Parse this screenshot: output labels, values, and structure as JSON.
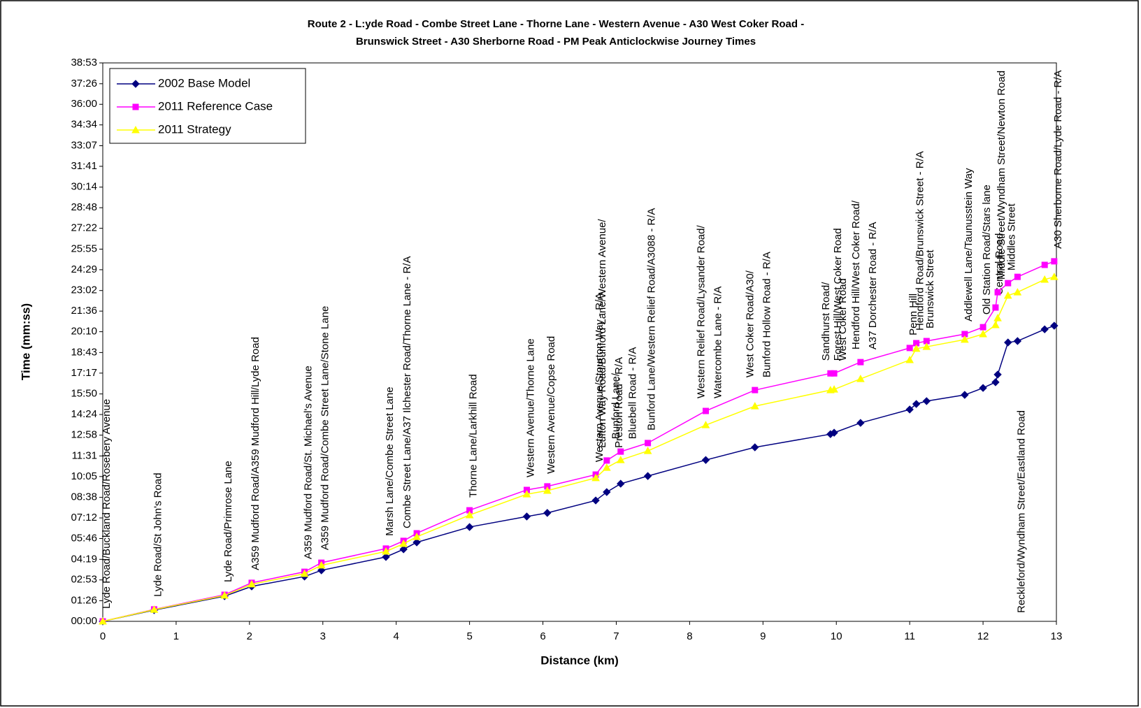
{
  "chart_data": {
    "type": "line",
    "title": [
      "Route 2 - L:yde Road - Combe Street Lane - Thorne Lane - Western Avenue - A30 West Coker Road -",
      "Brunswick Street - A30 Sherborne Road - PM Peak Anticlockwise Journey Times"
    ],
    "x_label": "Distance (km)",
    "y_label": "Time (mm:ss)",
    "x": [
      0,
      0.7,
      1.66,
      2.03,
      2.75,
      2.98,
      3.86,
      4.1,
      4.28,
      5.0,
      5.78,
      6.06,
      6.72,
      6.87,
      7.06,
      7.43,
      8.22,
      8.89,
      9.92,
      9.97,
      10.33,
      11.0,
      11.09,
      11.23,
      11.75,
      12.0,
      12.17,
      12.2,
      12.34,
      12.47,
      12.84,
      12.97
    ],
    "series": [
      {
        "name": "2002 Base Model",
        "color": "#000080",
        "marker": "diamond",
        "values": [
          0,
          47,
          105,
          146,
          187,
          213,
          269,
          301,
          330,
          394,
          438,
          453,
          505,
          540,
          575,
          607,
          674,
          727,
          782,
          788,
          829,
          885,
          908,
          920,
          946,
          975,
          999,
          1031,
          1165,
          1171,
          1220,
          1235
        ]
      },
      {
        "name": "2011 Reference Case",
        "color": "#ff00ff",
        "marker": "square",
        "values": [
          0,
          50,
          111,
          161,
          207,
          245,
          304,
          336,
          368,
          464,
          549,
          564,
          613,
          672,
          709,
          745,
          879,
          966,
          1036,
          1036,
          1083,
          1142,
          1162,
          1171,
          1200,
          1229,
          1311,
          1375,
          1413,
          1439,
          1489,
          1504
        ]
      },
      {
        "name": "2011 Strategy",
        "color": "#ffff00",
        "marker": "triangle",
        "values": [
          0,
          49,
          108,
          155,
          199,
          234,
          292,
          324,
          353,
          444,
          531,
          546,
          599,
          642,
          674,
          712,
          820,
          899,
          966,
          969,
          1013,
          1092,
          1139,
          1147,
          1177,
          1200,
          1238,
          1267,
          1361,
          1375,
          1428,
          1439
        ]
      }
    ],
    "point_labels": [
      [
        "Lyde Road/Buckland Road/Rosebery Avenue"
      ],
      [
        "Lyde Road/St John's Road"
      ],
      [
        "Lyde Road/Primrose Lane"
      ],
      [
        "A359 Mudford Road/A359 Mudford Hill/Lyde Road"
      ],
      [
        "A359 Mudford Road/St. Michael's Avenue"
      ],
      [
        "A359 Mudford Road/Combe Street Lane/Stone Lane"
      ],
      [
        "Marsh Lane/Combe Street Lane"
      ],
      [
        "Combe Street Lane/A37 Ilchester Road/Thorne Lane - R/A"
      ],
      null,
      [
        "Thorne Lane/Larkhill Road"
      ],
      [
        "Western Avenue/Thorne Lane"
      ],
      [
        "Western Avenue/Copse Road"
      ],
      [
        "Western Avenue/Stourton Way - R/A"
      ],
      [
        "Lufton Way Road/Bunford Lane/Western Avenue/",
        "Preston Road - R/A"
      ],
      [
        "Bunford Lane/",
        "Bluebell Road - R/A"
      ],
      [
        "Bunford Lane/Western Relief Road/A3088 - R/A"
      ],
      [
        "Western Relief Road/Lysander Road/",
        "Watercombe Lane - R/A"
      ],
      [
        "West Coker Road/A30/",
        "Bunford Hollow Road - R/A"
      ],
      [
        "Sandhurst Road/",
        "West Coker Road"
      ],
      [
        "Forest Hill/West Coker Road"
      ],
      [
        "Hendford Hill/West Coker Road/",
        "A37 Dorchester Road - R/A"
      ],
      [
        "Penn Hill"
      ],
      [
        "Hendford Road/Brunswick Street - R/A"
      ],
      [
        "Brunswick Street"
      ],
      [
        "Addlewell Lane/Taunusstein Way"
      ],
      [
        "Old Station Road/Stars lane"
      ],
      [
        "Central Road"
      ],
      [
        "Middle Street/Wyndham Street/Newton Road"
      ],
      [
        "Middles Street"
      ],
      [
        "Reckleford/Wyndham Street/Eastland Road"
      ],
      null,
      [
        "A30 Sherborne Road/Lyde Road - R/A"
      ]
    ],
    "xlim": [
      0,
      13
    ],
    "xticks": [
      0,
      1,
      2,
      3,
      4,
      5,
      6,
      7,
      8,
      9,
      10,
      11,
      12,
      13
    ],
    "ylim": [
      0,
      2333
    ],
    "yticks": [
      {
        "value": 0,
        "label": "00:00"
      },
      {
        "value": 86,
        "label": "01:26"
      },
      {
        "value": 173,
        "label": "02:53"
      },
      {
        "value": 259,
        "label": "04:19"
      },
      {
        "value": 346,
        "label": "05:46"
      },
      {
        "value": 432,
        "label": "07:12"
      },
      {
        "value": 518,
        "label": "08:38"
      },
      {
        "value": 605,
        "label": "10:05"
      },
      {
        "value": 691,
        "label": "11:31"
      },
      {
        "value": 778,
        "label": "12:58"
      },
      {
        "value": 864,
        "label": "14:24"
      },
      {
        "value": 950,
        "label": "15:50"
      },
      {
        "value": 1037,
        "label": "17:17"
      },
      {
        "value": 1123,
        "label": "18:43"
      },
      {
        "value": 1210,
        "label": "20:10"
      },
      {
        "value": 1296,
        "label": "21:36"
      },
      {
        "value": 1382,
        "label": "23:02"
      },
      {
        "value": 1469,
        "label": "24:29"
      },
      {
        "value": 1555,
        "label": "25:55"
      },
      {
        "value": 1642,
        "label": "27:22"
      },
      {
        "value": 1728,
        "label": "28:48"
      },
      {
        "value": 1814,
        "label": "30:14"
      },
      {
        "value": 1901,
        "label": "31:41"
      },
      {
        "value": 1987,
        "label": "33:07"
      },
      {
        "value": 2074,
        "label": "34:34"
      },
      {
        "value": 2160,
        "label": "36:00"
      },
      {
        "value": 2246,
        "label": "37:26"
      },
      {
        "value": 2333,
        "label": "38:53"
      }
    ],
    "grid": false,
    "legend": "upper left"
  }
}
